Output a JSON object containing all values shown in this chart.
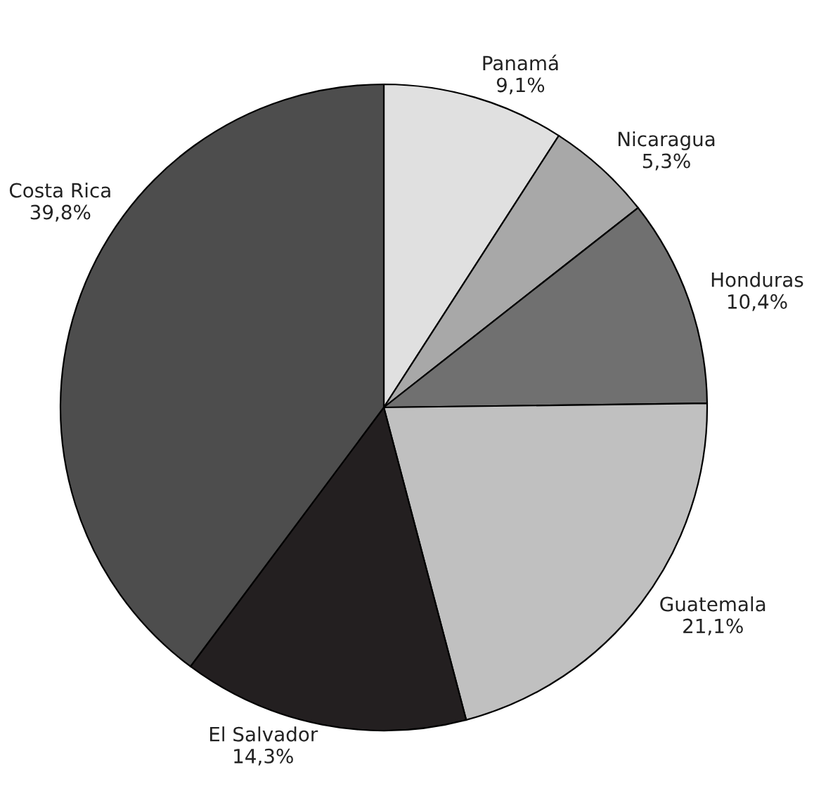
{
  "chart_data": {
    "type": "pie",
    "categories": [
      "Panamá",
      "Nicaragua",
      "Honduras",
      "Guatemala",
      "El Salvador",
      "Costa Rica"
    ],
    "values": [
      9.1,
      5.3,
      10.4,
      21.1,
      14.3,
      39.8
    ],
    "value_labels": [
      "9,1%",
      "5,3%",
      "10,4%",
      "21,1%",
      "14,3%",
      "39,8%"
    ],
    "colors": [
      "#e0e0e0",
      "#a8a8a8",
      "#707070",
      "#c0c0c0",
      "#231f20",
      "#4d4d4d"
    ]
  }
}
